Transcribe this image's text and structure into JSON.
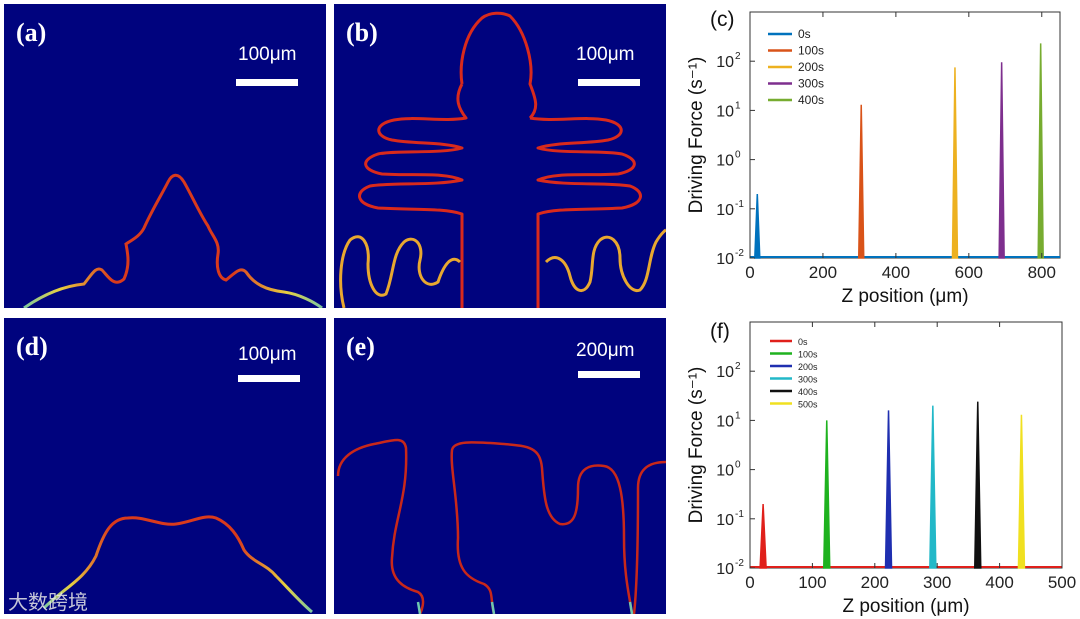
{
  "panels": {
    "a": {
      "label": "(a)",
      "scale": "100μm"
    },
    "b": {
      "label": "(b)",
      "scale": "100μm"
    },
    "d": {
      "label": "(d)",
      "scale": "100μm"
    },
    "e": {
      "label": "(e)",
      "scale": "200μm"
    }
  },
  "colors": {
    "background": "#00037e",
    "interface": "#d92a1c",
    "interface_tip": "#e8d040"
  },
  "watermark": "大数跨境",
  "chart_data": [
    {
      "id": "c",
      "type": "line",
      "panel_label": "(c)",
      "xlabel": "Z position (μm)",
      "ylabel": "Driving Force (s⁻¹)",
      "yscale": "log",
      "xlim": [
        0,
        850
      ],
      "ylim": [
        0.01,
        1000
      ],
      "xticks": [
        0,
        200,
        400,
        600,
        800
      ],
      "xtick_labels": [
        "0",
        "200",
        "400",
        "600",
        "800"
      ],
      "yticks": [
        0.01,
        0.1,
        1,
        10,
        100
      ],
      "ytick_labels": [
        "10",
        "10",
        "10",
        "10",
        "10"
      ],
      "ytick_exps": [
        "-2",
        "-1",
        "0",
        "1",
        "2"
      ],
      "baseline": 0.01,
      "series": [
        {
          "name": "0s",
          "color": "#0072bd",
          "peak_x": 20,
          "peak_y": 0.2
        },
        {
          "name": "100s",
          "color": "#d95319",
          "peak_x": 305,
          "peak_y": 13
        },
        {
          "name": "200s",
          "color": "#edb120",
          "peak_x": 562,
          "peak_y": 75
        },
        {
          "name": "300s",
          "color": "#7e2f8e",
          "peak_x": 690,
          "peak_y": 95
        },
        {
          "name": "400s",
          "color": "#77ac30",
          "peak_x": 797,
          "peak_y": 230
        }
      ]
    },
    {
      "id": "f",
      "type": "line",
      "panel_label": "(f)",
      "xlabel": "Z position (μm)",
      "ylabel": "Driving Force (s⁻¹)",
      "yscale": "log",
      "xlim": [
        0,
        500
      ],
      "ylim": [
        0.01,
        1000
      ],
      "xticks": [
        0,
        100,
        200,
        300,
        400,
        500
      ],
      "xtick_labels": [
        "0",
        "100",
        "200",
        "300",
        "400",
        "500"
      ],
      "yticks": [
        0.01,
        0.1,
        1,
        10,
        100
      ],
      "ytick_labels": [
        "10",
        "10",
        "10",
        "10",
        "10"
      ],
      "ytick_exps": [
        "-2",
        "-1",
        "0",
        "1",
        "2"
      ],
      "baseline": 0.01,
      "series": [
        {
          "name": "0s",
          "color": "#e0201b",
          "peak_x": 21,
          "peak_y": 0.2
        },
        {
          "name": "100s",
          "color": "#1fb21f",
          "peak_x": 123,
          "peak_y": 10
        },
        {
          "name": "200s",
          "color": "#1f2fb0",
          "peak_x": 222,
          "peak_y": 16
        },
        {
          "name": "300s",
          "color": "#22b8c8",
          "peak_x": 293,
          "peak_y": 20
        },
        {
          "name": "400s",
          "color": "#111111",
          "peak_x": 365,
          "peak_y": 24
        },
        {
          "name": "500s",
          "color": "#f0e020",
          "peak_x": 435,
          "peak_y": 13
        }
      ]
    }
  ]
}
